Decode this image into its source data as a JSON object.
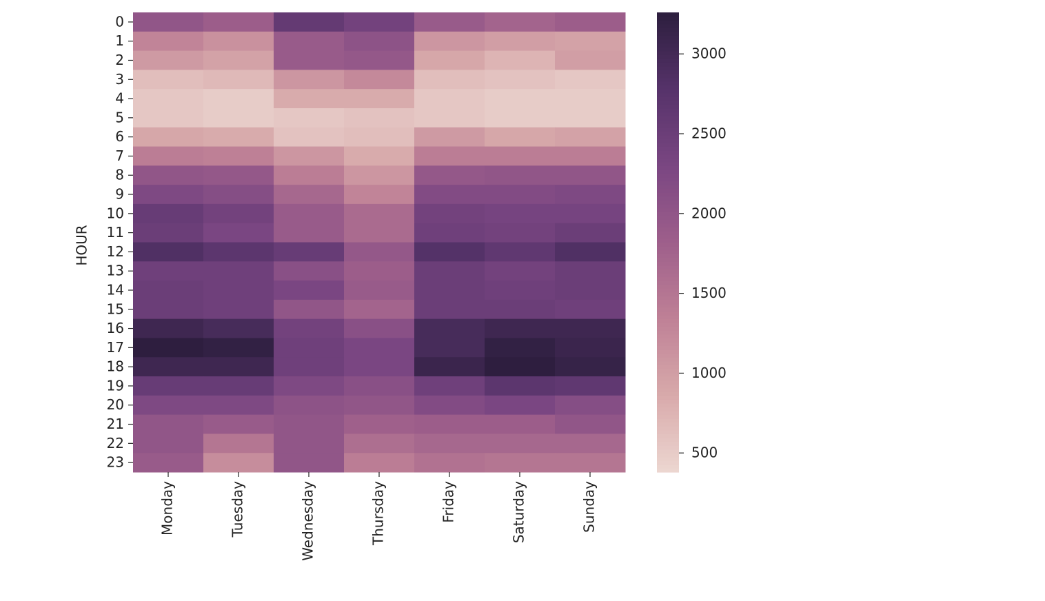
{
  "chart_data": {
    "type": "heatmap",
    "ylabel": "HOUR",
    "categories": [
      "Monday",
      "Tuesday",
      "Wednesday",
      "Thursday",
      "Friday",
      "Saturday",
      "Sunday"
    ],
    "y": [
      0,
      1,
      2,
      3,
      4,
      5,
      6,
      7,
      8,
      9,
      10,
      11,
      12,
      13,
      14,
      15,
      16,
      17,
      18,
      19,
      20,
      21,
      22,
      23
    ],
    "values": [
      [
        2000,
        1850,
        2600,
        2400,
        1900,
        1750,
        1850
      ],
      [
        1300,
        1150,
        1900,
        2050,
        1100,
        1000,
        950
      ],
      [
        1050,
        950,
        1900,
        1950,
        900,
        750,
        1000
      ],
      [
        650,
        700,
        1100,
        1250,
        650,
        600,
        550
      ],
      [
        550,
        500,
        850,
        850,
        550,
        500,
        500
      ],
      [
        550,
        500,
        550,
        600,
        550,
        500,
        500
      ],
      [
        900,
        850,
        600,
        650,
        1050,
        900,
        950
      ],
      [
        1400,
        1350,
        1100,
        850,
        1400,
        1400,
        1400
      ],
      [
        2000,
        1950,
        1400,
        1100,
        1950,
        2000,
        2000
      ],
      [
        2250,
        2150,
        1700,
        1300,
        2200,
        2200,
        2250
      ],
      [
        2550,
        2400,
        1900,
        1650,
        2400,
        2350,
        2350
      ],
      [
        2500,
        2300,
        1900,
        1650,
        2450,
        2400,
        2500
      ],
      [
        2850,
        2700,
        2550,
        1950,
        2800,
        2650,
        2850
      ],
      [
        2450,
        2450,
        2100,
        1850,
        2500,
        2400,
        2500
      ],
      [
        2500,
        2450,
        2300,
        1900,
        2500,
        2450,
        2500
      ],
      [
        2500,
        2450,
        2000,
        1750,
        2500,
        2500,
        2450
      ],
      [
        3050,
        2950,
        2400,
        2100,
        2950,
        3050,
        3050
      ],
      [
        3250,
        3200,
        2450,
        2300,
        2950,
        3200,
        3100
      ],
      [
        3050,
        3050,
        2450,
        2300,
        3100,
        3250,
        3150
      ],
      [
        2550,
        2550,
        2250,
        2100,
        2450,
        2700,
        2650
      ],
      [
        2250,
        2250,
        2050,
        2000,
        2200,
        2300,
        2150
      ],
      [
        2000,
        1900,
        2000,
        1800,
        1850,
        1850,
        2000
      ],
      [
        2000,
        1500,
        2000,
        1600,
        1700,
        1700,
        1700
      ],
      [
        1900,
        1200,
        2000,
        1400,
        1550,
        1500,
        1500
      ]
    ],
    "zlim": [
      380,
      3260
    ],
    "zticks": [
      500,
      1000,
      1500,
      2000,
      2500,
      3000
    ],
    "colorscale": [
      "#ecd7d1",
      "#d8aaab",
      "#bf8196",
      "#9e5f8b",
      "#7a4682",
      "#56336a",
      "#2d1e3e"
    ]
  }
}
